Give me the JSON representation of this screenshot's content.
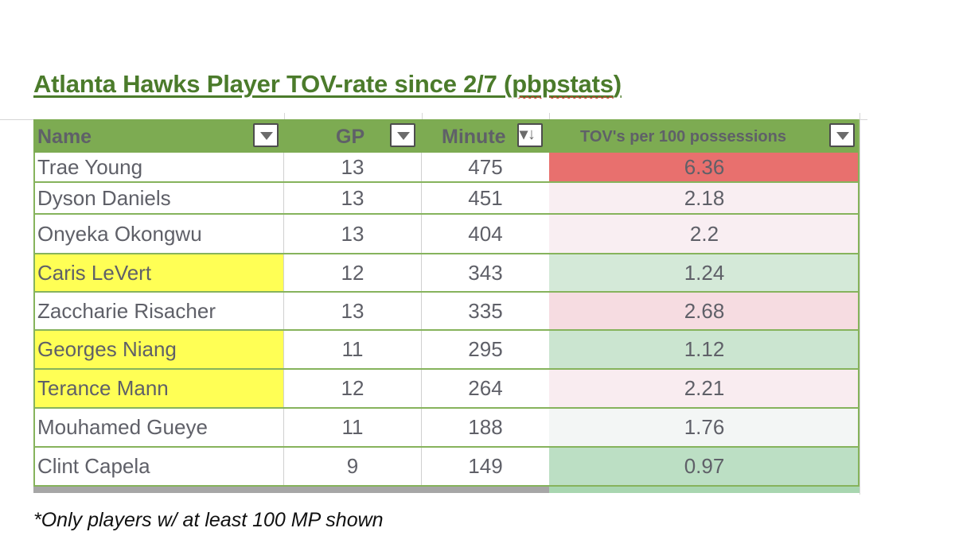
{
  "title_main": "Atlanta Hawks Player TOV-rate since 2/7 (",
  "title_flagged": "pbpstats",
  "title_end": ")",
  "columns": [
    {
      "label": "Name",
      "control": "filter-dropdown"
    },
    {
      "label": "GP",
      "control": "filter-dropdown"
    },
    {
      "label": "Minute",
      "control": "sort-descending"
    },
    {
      "label": "TOV's per 100 possessions",
      "control": "filter-dropdown"
    }
  ],
  "colors": {
    "header": "#7dab52",
    "title": "#4b7b2b",
    "highlight_yellow": "#ffff55"
  },
  "rows": [
    {
      "name": "Trae Young",
      "gp": "13",
      "minutes": "475",
      "tov": "6.36",
      "tov_color": "#e8706e",
      "highlight": false
    },
    {
      "name": "Dyson Daniels",
      "gp": "13",
      "minutes": "451",
      "tov": "2.18",
      "tov_color": "#f9eef2",
      "highlight": false
    },
    {
      "name": "Onyeka Okongwu",
      "gp": "13",
      "minutes": "404",
      "tov": "2.2",
      "tov_color": "#f9eef2",
      "highlight": false
    },
    {
      "name": "Caris LeVert",
      "gp": "12",
      "minutes": "343",
      "tov": "1.24",
      "tov_color": "#d4e9d8",
      "highlight": true
    },
    {
      "name": "Zaccharie Risacher",
      "gp": "13",
      "minutes": "335",
      "tov": "2.68",
      "tov_color": "#f6dce1",
      "highlight": false
    },
    {
      "name": "Georges Niang",
      "gp": "11",
      "minutes": "295",
      "tov": "1.12",
      "tov_color": "#cbe5d0",
      "highlight": true
    },
    {
      "name": "Terance Mann",
      "gp": "12",
      "minutes": "264",
      "tov": "2.21",
      "tov_color": "#f9ecf0",
      "highlight": true
    },
    {
      "name": "Mouhamed Gueye",
      "gp": "11",
      "minutes": "188",
      "tov": "1.76",
      "tov_color": "#f3f6f5",
      "highlight": false
    },
    {
      "name": "Clint Capela",
      "gp": "9",
      "minutes": "149",
      "tov": "0.97",
      "tov_color": "#bcdfc4",
      "highlight": false
    }
  ],
  "footnote": "*Only players w/ at least 100 MP shown"
}
